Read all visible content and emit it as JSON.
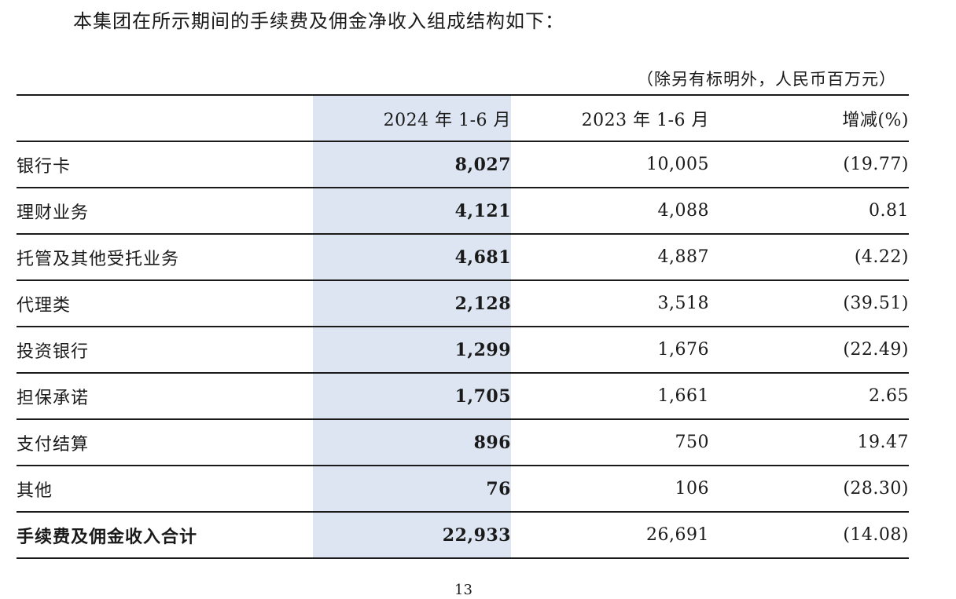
{
  "intro_text": "本集团在所示期间的手续费及佣金净收入组成结构如下：",
  "unit_note": "（除另有标明外，人民币百万元）",
  "table": {
    "headers": {
      "label": "",
      "col_2024": "2024 年 1-6 月",
      "col_2023": "2023 年 1-6 月",
      "col_change": "增减(%)"
    },
    "rows": [
      {
        "label": "银行卡",
        "v2024": "8,027",
        "v2023": "10,005",
        "change": "(19.77)"
      },
      {
        "label": "理财业务",
        "v2024": "4,121",
        "v2023": "4,088",
        "change": "0.81"
      },
      {
        "label": "托管及其他受托业务",
        "v2024": "4,681",
        "v2023": "4,887",
        "change": "(4.22)"
      },
      {
        "label": "代理类",
        "v2024": "2,128",
        "v2023": "3,518",
        "change": "(39.51)"
      },
      {
        "label": "投资银行",
        "v2024": "1,299",
        "v2023": "1,676",
        "change": "(22.49)"
      },
      {
        "label": "担保承诺",
        "v2024": "1,705",
        "v2023": "1,661",
        "change": "2.65"
      },
      {
        "label": "支付结算",
        "v2024": "896",
        "v2023": "750",
        "change": "19.47"
      },
      {
        "label": "其他",
        "v2024": "76",
        "v2023": "106",
        "change": "(28.30)"
      }
    ],
    "total": {
      "label": "手续费及佣金收入合计",
      "v2024": "22,933",
      "v2023": "26,691",
      "change": "(14.08)"
    }
  },
  "page_number": "13",
  "colors": {
    "highlight_column": "#dce5f1",
    "rule_lines": "#1a1a1a"
  }
}
